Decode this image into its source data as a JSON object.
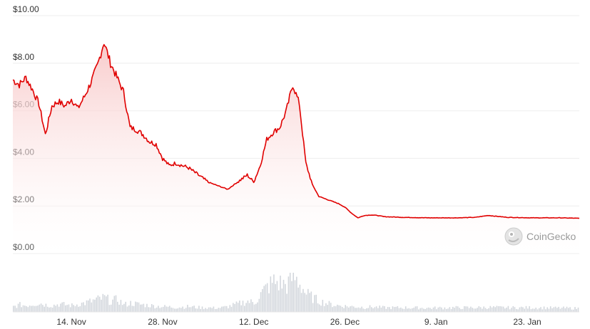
{
  "chart_data": {
    "type": "area",
    "title": "",
    "xlabel": "",
    "ylabel": "",
    "ylim": [
      0,
      10
    ],
    "y_ticks": [
      "$0.00",
      "$2.00",
      "$4.00",
      "$6.00",
      "$8.00",
      "$10.00"
    ],
    "x_ticks": [
      "14. Nov",
      "28. Nov",
      "12. Dec",
      "26. Dec",
      "9. Jan",
      "23. Jan"
    ],
    "grid": true,
    "legend": "none",
    "colors": {
      "line": "#e00000",
      "fill_top": "#f8c9c9",
      "volume": "#d3d7dd",
      "grid": "#eeeeee"
    },
    "series": [
      {
        "x": [
          "2021-11-05",
          "2021-11-06",
          "2021-11-07",
          "2021-11-08",
          "2021-11-09",
          "2021-11-10",
          "2021-11-11",
          "2021-11-12",
          "2021-11-13",
          "2021-11-14",
          "2021-11-15",
          "2021-11-16",
          "2021-11-17",
          "2021-11-18",
          "2021-11-19",
          "2021-11-20",
          "2021-11-21",
          "2021-11-22",
          "2021-11-23",
          "2021-11-24",
          "2021-11-25",
          "2021-11-26",
          "2021-11-27",
          "2021-11-28",
          "2021-11-29",
          "2021-11-30",
          "2021-12-01",
          "2021-12-02",
          "2021-12-03",
          "2021-12-04",
          "2021-12-05",
          "2021-12-06",
          "2021-12-07",
          "2021-12-08",
          "2021-12-09",
          "2021-12-10",
          "2021-12-11",
          "2021-12-12",
          "2021-12-13",
          "2021-12-14",
          "2021-12-15",
          "2021-12-16",
          "2021-12-17",
          "2021-12-18",
          "2021-12-19",
          "2021-12-20",
          "2021-12-21",
          "2021-12-22",
          "2021-12-23",
          "2021-12-24",
          "2021-12-25",
          "2021-12-26",
          "2021-12-27",
          "2021-12-28",
          "2021-12-29",
          "2021-12-30",
          "2021-12-31",
          "2022-01-01",
          "2022-01-04",
          "2022-01-08",
          "2022-01-12",
          "2022-01-15",
          "2022-01-17",
          "2022-01-20",
          "2022-01-24",
          "2022-01-28",
          "2022-01-31"
        ],
        "values": [
          7.3,
          7.1,
          7.4,
          6.9,
          6.3,
          5.0,
          6.2,
          6.4,
          6.2,
          6.5,
          6.1,
          6.6,
          7.2,
          7.9,
          8.9,
          8.0,
          7.4,
          6.8,
          5.3,
          5.2,
          5.0,
          4.7,
          4.6,
          4.0,
          3.7,
          3.8,
          3.7,
          3.6,
          3.4,
          3.2,
          3.0,
          2.9,
          2.8,
          2.7,
          2.9,
          3.1,
          3.3,
          3.0,
          3.7,
          4.8,
          5.1,
          5.3,
          6.0,
          7.1,
          6.3,
          3.8,
          2.9,
          2.4,
          2.3,
          2.2,
          2.1,
          1.95,
          1.7,
          1.5,
          1.6,
          1.62,
          1.6,
          1.55,
          1.52,
          1.5,
          1.5,
          1.52,
          1.6,
          1.52,
          1.5,
          1.5,
          1.48
        ]
      }
    ],
    "volume": {
      "values": [
        0.15,
        0.2,
        0.18,
        0.22,
        0.25,
        0.2,
        0.18,
        0.22,
        0.2,
        0.18,
        0.22,
        0.25,
        0.3,
        0.35,
        0.4,
        0.3,
        0.35,
        0.2,
        0.25,
        0.22,
        0.2,
        0.18,
        0.16,
        0.15,
        0.14,
        0.13,
        0.14,
        0.15,
        0.13,
        0.12,
        0.12,
        0.11,
        0.12,
        0.15,
        0.2,
        0.25,
        0.3,
        0.25,
        0.5,
        0.7,
        0.85,
        0.8,
        0.75,
        1.0,
        0.8,
        0.5,
        0.4,
        0.3,
        0.25,
        0.2,
        0.18,
        0.16,
        0.15,
        0.14,
        0.13,
        0.14,
        0.13,
        0.12,
        0.12,
        0.11,
        0.12,
        0.12,
        0.13,
        0.12,
        0.12,
        0.11,
        0.1
      ]
    }
  },
  "watermark": {
    "text": "CoinGecko",
    "icon": "coingecko-logo-icon"
  }
}
